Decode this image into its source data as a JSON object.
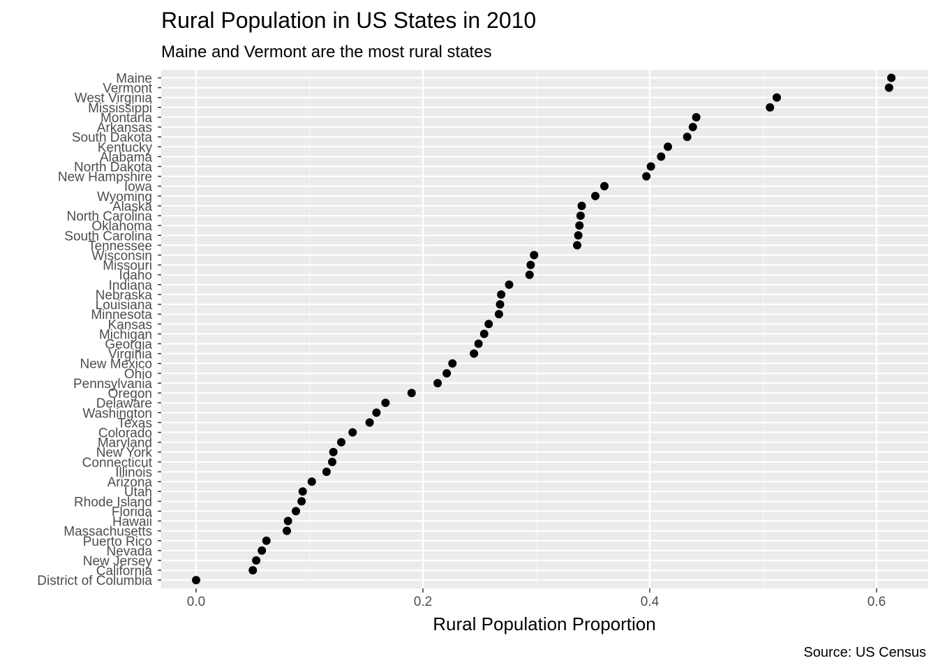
{
  "chart_data": {
    "type": "scatter",
    "title": "Rural Population in US States in 2010",
    "subtitle": "Maine and Vermont are the most rural states",
    "xlabel": "Rural Population Proportion",
    "ylabel": "",
    "caption": "Source: US Census",
    "xlim": [
      -0.15,
      0.64
    ],
    "xticks": [
      0.0,
      0.2,
      0.4,
      0.6
    ],
    "xtick_labels": [
      "0.0",
      "0.2",
      "0.4",
      "0.6"
    ],
    "grid": true,
    "legend": "none",
    "colors": {
      "panel": "#ebebeb",
      "grid_major": "#ffffff",
      "grid_minor": "#f5f5f5",
      "point": "#000000",
      "tick_text": "#4d4d4d",
      "tick_mark": "#333333"
    },
    "points": [
      {
        "state": "Maine",
        "value": 0.613
      },
      {
        "state": "Vermont",
        "value": 0.611
      },
      {
        "state": "West Virginia",
        "value": 0.512
      },
      {
        "state": "Mississippi",
        "value": 0.506
      },
      {
        "state": "Montana",
        "value": 0.441
      },
      {
        "state": "Arkansas",
        "value": 0.438
      },
      {
        "state": "South Dakota",
        "value": 0.433
      },
      {
        "state": "Kentucky",
        "value": 0.416
      },
      {
        "state": "Alabama",
        "value": 0.41
      },
      {
        "state": "North Dakota",
        "value": 0.401
      },
      {
        "state": "New Hampshire",
        "value": 0.397
      },
      {
        "state": "Iowa",
        "value": 0.36
      },
      {
        "state": "Wyoming",
        "value": 0.352
      },
      {
        "state": "Alaska",
        "value": 0.34
      },
      {
        "state": "North Carolina",
        "value": 0.339
      },
      {
        "state": "Oklahoma",
        "value": 0.338
      },
      {
        "state": "South Carolina",
        "value": 0.337
      },
      {
        "state": "Tennessee",
        "value": 0.336
      },
      {
        "state": "Wisconsin",
        "value": 0.298
      },
      {
        "state": "Missouri",
        "value": 0.295
      },
      {
        "state": "Idaho",
        "value": 0.294
      },
      {
        "state": "Indiana",
        "value": 0.276
      },
      {
        "state": "Nebraska",
        "value": 0.269
      },
      {
        "state": "Louisiana",
        "value": 0.268
      },
      {
        "state": "Minnesota",
        "value": 0.267
      },
      {
        "state": "Kansas",
        "value": 0.258
      },
      {
        "state": "Michigan",
        "value": 0.254
      },
      {
        "state": "Georgia",
        "value": 0.249
      },
      {
        "state": "Virginia",
        "value": 0.245
      },
      {
        "state": "New Mexico",
        "value": 0.226
      },
      {
        "state": "Ohio",
        "value": 0.221
      },
      {
        "state": "Pennsylvania",
        "value": 0.213
      },
      {
        "state": "Oregon",
        "value": 0.19
      },
      {
        "state": "Delaware",
        "value": 0.167
      },
      {
        "state": "Washington",
        "value": 0.159
      },
      {
        "state": "Texas",
        "value": 0.153
      },
      {
        "state": "Colorado",
        "value": 0.138
      },
      {
        "state": "Maryland",
        "value": 0.128
      },
      {
        "state": "New York",
        "value": 0.121
      },
      {
        "state": "Connecticut",
        "value": 0.12
      },
      {
        "state": "Illinois",
        "value": 0.115
      },
      {
        "state": "Arizona",
        "value": 0.102
      },
      {
        "state": "Utah",
        "value": 0.094
      },
      {
        "state": "Rhode Island",
        "value": 0.093
      },
      {
        "state": "Florida",
        "value": 0.088
      },
      {
        "state": "Hawaii",
        "value": 0.081
      },
      {
        "state": "Massachusetts",
        "value": 0.08
      },
      {
        "state": "Puerto Rico",
        "value": 0.062
      },
      {
        "state": "Nevada",
        "value": 0.058
      },
      {
        "state": "New Jersey",
        "value": 0.053
      },
      {
        "state": "California",
        "value": 0.05
      },
      {
        "state": "District of Columbia",
        "value": 0.0
      }
    ]
  }
}
